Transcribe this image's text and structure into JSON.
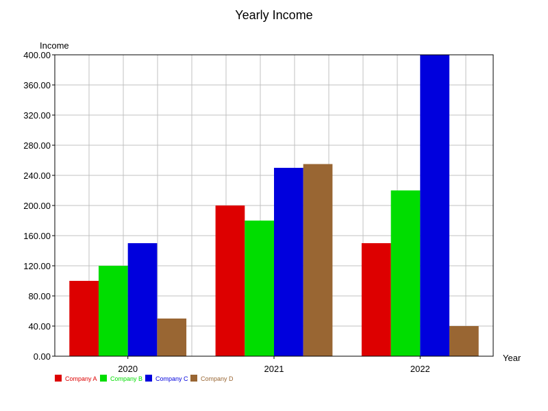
{
  "chart_data": {
    "type": "bar",
    "title": "Yearly Income",
    "ylabel": "Income",
    "xlabel": "Year",
    "categories": [
      "2020",
      "2021",
      "2022"
    ],
    "ylim": [
      0,
      400
    ],
    "y_ticks": [
      "0.00",
      "40.00",
      "80.00",
      "120.00",
      "160.00",
      "200.00",
      "240.00",
      "280.00",
      "320.00",
      "360.00",
      "400.00"
    ],
    "grid": true,
    "legend_position": "bottom-left",
    "series": [
      {
        "name": "Company A",
        "color": "#dd0000",
        "values": [
          100,
          200,
          150
        ]
      },
      {
        "name": "Company B",
        "color": "#00dd00",
        "values": [
          120,
          180,
          220
        ]
      },
      {
        "name": "Company C",
        "color": "#0000dd",
        "values": [
          150,
          250,
          400
        ]
      },
      {
        "name": "Company D",
        "color": "#996633",
        "values": [
          50,
          255,
          40
        ]
      }
    ]
  }
}
